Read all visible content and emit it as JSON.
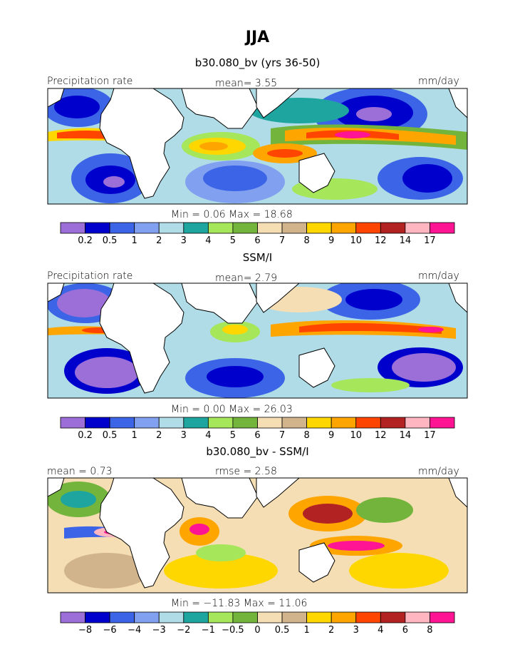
{
  "figure": {
    "title": "JJA",
    "panels": [
      {
        "subtitle": "b30.080_bv (yrs 36-50)",
        "left_label": "Precipitation rate",
        "center_label": "mean=   3.55",
        "right_label": "mm/day",
        "min_max": "Min =    0.06  Max =   18.68"
      },
      {
        "subtitle": "SSM/I",
        "left_label": "Precipitation rate",
        "center_label": "mean=   2.79",
        "right_label": "mm/day",
        "min_max": "Min =    0.00  Max =   26.03"
      },
      {
        "subtitle": "b30.080_bv - SSM/I",
        "left_label": "mean =    0.73",
        "center_label": "rmse =    2.58",
        "right_label": "mm/day",
        "min_max": "Min = −11.83  Max =   11.06"
      }
    ]
  },
  "colorbar_abs": {
    "colors": [
      "#9c6fd8",
      "#0000cd",
      "#3c64e6",
      "#82a0f0",
      "#afdce6",
      "#1ea5a0",
      "#a5e65a",
      "#73b43c",
      "#f5deb3",
      "#d2b48c",
      "#ffd700",
      "#ffa500",
      "#ff4500",
      "#b22222",
      "#ffb6c1",
      "#ff1493"
    ],
    "ticks": [
      "0.2",
      "0.5",
      "1",
      "2",
      "3",
      "4",
      "5",
      "6",
      "7",
      "8",
      "9",
      "10",
      "12",
      "14",
      "17"
    ]
  },
  "colorbar_diff": {
    "colors": [
      "#9c6fd8",
      "#0000cd",
      "#3c64e6",
      "#82a0f0",
      "#afdce6",
      "#1ea5a0",
      "#a5e65a",
      "#73b43c",
      "#f5deb3",
      "#d2b48c",
      "#ffd700",
      "#ffa500",
      "#ff4500",
      "#b22222",
      "#ffb6c1",
      "#ff1493"
    ],
    "ticks": [
      "−8",
      "−6",
      "−4",
      "−3",
      "−2",
      "−1",
      "−0.5",
      "0",
      "0.5",
      "1",
      "2",
      "3",
      "4",
      "6",
      "8"
    ]
  }
}
